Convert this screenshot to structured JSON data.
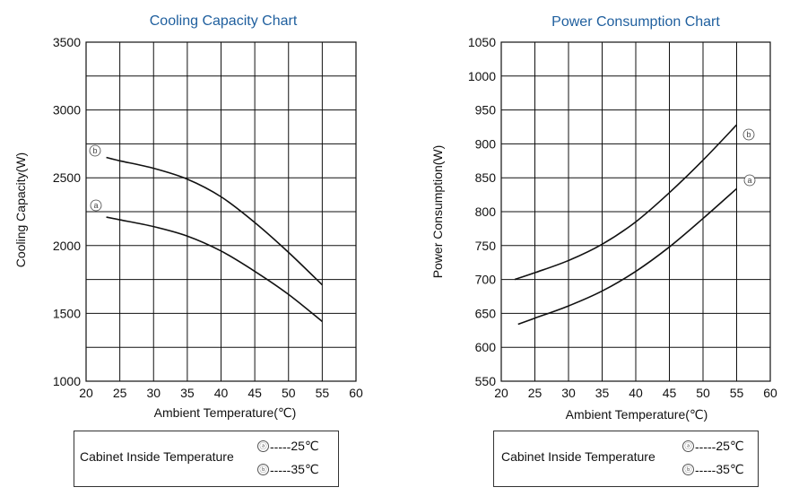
{
  "chart_data": [
    {
      "type": "line",
      "title": "Cooling Capacity Chart",
      "xlabel": "Ambient Temperature(℃)",
      "ylabel": "Cooling  Capacity(W)",
      "xlim": [
        20,
        60
      ],
      "ylim": [
        1000,
        3500
      ],
      "xticks": [
        20,
        25,
        30,
        35,
        40,
        45,
        50,
        55,
        60
      ],
      "yticks": [
        1000,
        1500,
        2000,
        2500,
        3000,
        3500
      ],
      "x_minor_step": 5,
      "y_minor_step": 250,
      "series": [
        {
          "name": "b",
          "label": "ⓑ",
          "x": [
            23,
            25,
            30,
            35,
            40,
            45,
            50,
            55
          ],
          "y": [
            2650,
            2625,
            2570,
            2490,
            2360,
            2170,
            1950,
            1710
          ]
        },
        {
          "name": "a",
          "label": "ⓐ",
          "x": [
            23,
            25,
            30,
            35,
            40,
            45,
            50,
            55
          ],
          "y": [
            2210,
            2190,
            2140,
            2070,
            1960,
            1810,
            1640,
            1440
          ]
        }
      ],
      "legend": {
        "title": "Cabinet Inside Temperature",
        "entries": [
          {
            "marker": "ⓐ",
            "dashes": "-----",
            "value": "25℃"
          },
          {
            "marker": "ⓑ",
            "dashes": "-----",
            "value": "35℃"
          }
        ]
      }
    },
    {
      "type": "line",
      "title": "Power Consumption Chart",
      "xlabel": "Ambient Temperature(℃)",
      "ylabel": "Power Consumption(W)",
      "xlim": [
        20,
        60
      ],
      "ylim": [
        550,
        1050
      ],
      "xticks": [
        20,
        25,
        30,
        35,
        40,
        45,
        50,
        55,
        60
      ],
      "yticks": [
        550,
        600,
        650,
        700,
        750,
        800,
        850,
        900,
        950,
        1000,
        1050
      ],
      "x_minor_step": 5,
      "y_minor_step": 50,
      "series": [
        {
          "name": "b",
          "label": "ⓑ",
          "x": [
            22,
            25,
            30,
            35,
            40,
            45,
            50,
            55
          ],
          "y": [
            700,
            710,
            728,
            752,
            785,
            828,
            876,
            928
          ]
        },
        {
          "name": "a",
          "label": "ⓐ",
          "x": [
            22.5,
            25,
            30,
            35,
            40,
            45,
            50,
            55
          ],
          "y": [
            634,
            643,
            661,
            683,
            712,
            748,
            790,
            834
          ]
        }
      ],
      "legend": {
        "title": "Cabinet Inside Temperature",
        "entries": [
          {
            "marker": "ⓐ",
            "dashes": "-----",
            "value": "25℃"
          },
          {
            "marker": "ⓑ",
            "dashes": "-----",
            "value": "35℃"
          }
        ]
      }
    }
  ]
}
